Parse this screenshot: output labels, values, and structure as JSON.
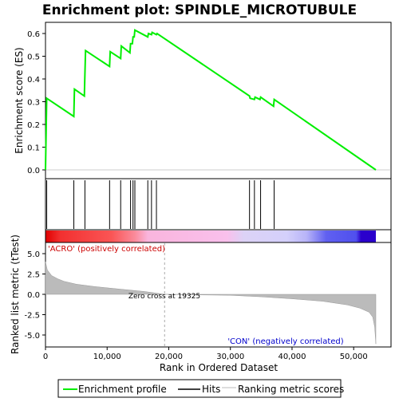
{
  "title": "Enrichment plot: SPINDLE_MICROTUBULE",
  "top_panel": {
    "ylabel": "Enrichment score (ES)",
    "yticks": [
      "0.0",
      "0.1",
      "0.2",
      "0.3",
      "0.4",
      "0.5",
      "0.6"
    ]
  },
  "bottom_panel": {
    "ylabel": "Ranked list metric (tTest)",
    "yticks": [
      "5.0",
      "2.5",
      "0.0",
      "-2.5",
      "-5.0"
    ],
    "positive_label": "'ACRO' (positively correlated)",
    "negative_label": "'CON' (negatively correlated)",
    "zero_cross_label": "Zero cross at 19325"
  },
  "xaxis": {
    "label": "Rank in Ordered Dataset",
    "ticks": [
      "0",
      "10,000",
      "20,000",
      "30,000",
      "40,000",
      "50,000"
    ]
  },
  "legend": {
    "items": [
      {
        "label": "Enrichment profile",
        "color": "#00ee00"
      },
      {
        "label": "Hits",
        "color": "#000000"
      },
      {
        "label": "Ranking metric scores",
        "color": "#bbbbbb"
      }
    ]
  },
  "colors": {
    "profile": "#00ee00",
    "positive_text": "#cc0000",
    "negative_text": "#0000cc",
    "metric_fill": "#bbbbbb"
  },
  "chart_data": [
    {
      "type": "line",
      "name": "enrichment_profile",
      "xlim": [
        0,
        56000
      ],
      "ylim": [
        -0.02,
        0.65
      ],
      "x": [
        0,
        200,
        4600,
        4700,
        6300,
        6400,
        6500,
        10400,
        10500,
        12200,
        12300,
        13700,
        13800,
        14100,
        14200,
        14400,
        14500,
        16600,
        16700,
        17200,
        17300,
        18000,
        18100,
        33100,
        33200,
        33900,
        34000,
        34800,
        34900,
        37000,
        37100,
        53600
      ],
      "y": [
        0.0,
        0.315,
        0.235,
        0.355,
        0.325,
        0.42,
        0.525,
        0.455,
        0.52,
        0.49,
        0.545,
        0.515,
        0.555,
        0.555,
        0.585,
        0.585,
        0.615,
        0.585,
        0.6,
        0.595,
        0.605,
        0.595,
        0.6,
        0.325,
        0.315,
        0.31,
        0.32,
        0.31,
        0.32,
        0.28,
        0.31,
        0.0
      ]
    },
    {
      "type": "scatter",
      "name": "hits",
      "x": [
        200,
        4600,
        6400,
        10400,
        12200,
        13800,
        14200,
        14500,
        16600,
        17200,
        18000,
        33100,
        33900,
        34900,
        37100
      ]
    },
    {
      "type": "area",
      "name": "ranking_metric",
      "ylim": [
        -6.3,
        5.8
      ],
      "zero_cross": 19325,
      "x": [
        0,
        300,
        1000,
        2000,
        3000,
        5000,
        8000,
        12000,
        16000,
        19325,
        23000,
        30000,
        35000,
        40000,
        45000,
        49000,
        51000,
        52500,
        53100,
        53400,
        53600
      ],
      "y": [
        4.0,
        3.0,
        2.3,
        1.9,
        1.6,
        1.25,
        0.95,
        0.65,
        0.35,
        0.0,
        -0.05,
        -0.12,
        -0.3,
        -0.55,
        -0.85,
        -1.3,
        -1.7,
        -2.2,
        -2.8,
        -4.0,
        -6.1
      ]
    }
  ]
}
